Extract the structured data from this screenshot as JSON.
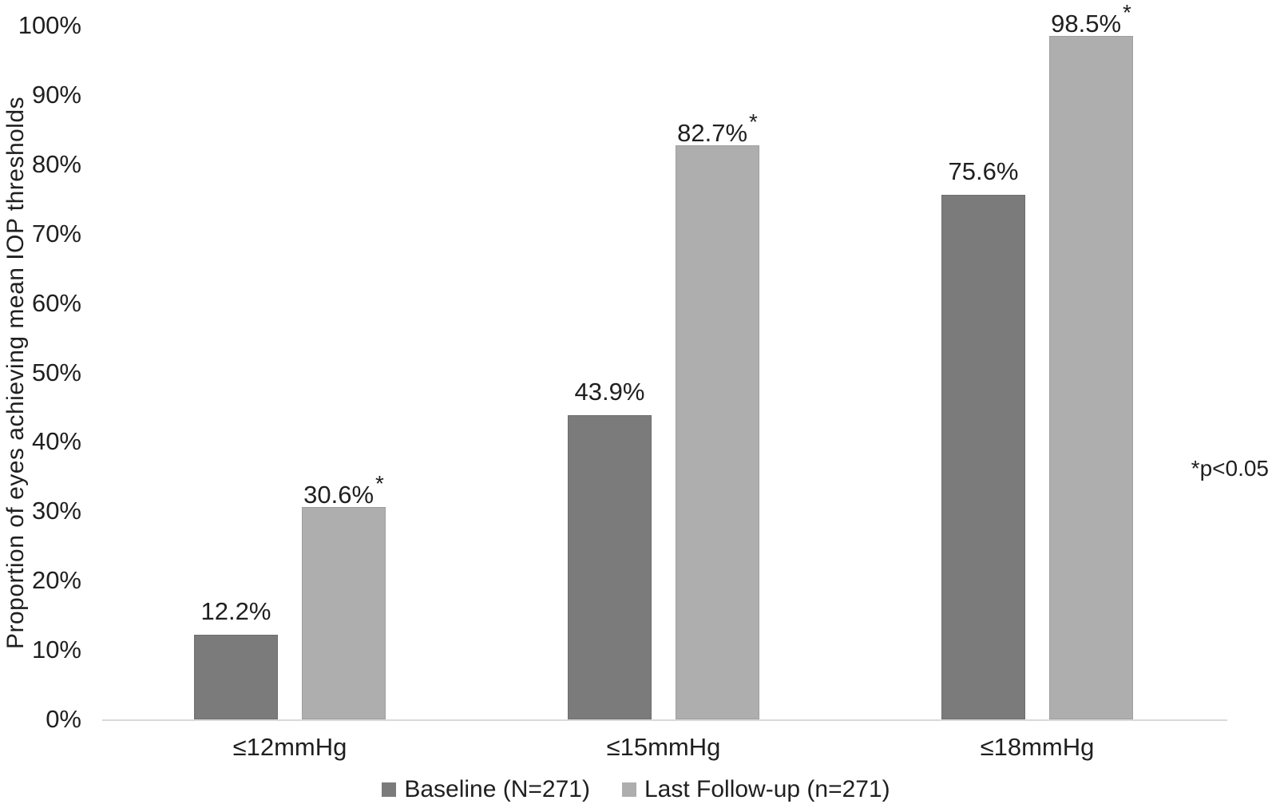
{
  "figure": {
    "background": "#ffffff",
    "text_color": "#1f1f1f",
    "axis_line_color": "#d9d9d9"
  },
  "chart_data": {
    "type": "bar",
    "title": "",
    "categories": [
      "≤12mmHg",
      "≤15mmHg",
      "≤18mmHg"
    ],
    "series": [
      {
        "key": "baseline",
        "name": "Baseline (N=271)",
        "color": "#7b7b7b",
        "border_color": "#6e6e6e",
        "values": [
          12.2,
          43.9,
          75.6
        ],
        "labels": [
          "12.2%",
          "43.9%",
          "75.6%"
        ],
        "significant": [
          false,
          false,
          false
        ]
      },
      {
        "key": "last-follow-up",
        "name": "Last Follow-up (n=271)",
        "color": "#aeaeae",
        "border_color": "#9f9f9f",
        "values": [
          30.6,
          82.7,
          98.5
        ],
        "labels": [
          "30.6%",
          "82.7%",
          "98.5%"
        ],
        "significant": [
          true,
          true,
          true
        ]
      }
    ],
    "xlabel": "",
    "ylabel": "Proportion of eyes achieving mean IOP thresholds",
    "ylim": [
      0,
      100
    ],
    "ytick_step": 10,
    "ytick_suffix": "%",
    "annotation": "*p<0.05",
    "legend_position": "bottom",
    "grid": false
  }
}
